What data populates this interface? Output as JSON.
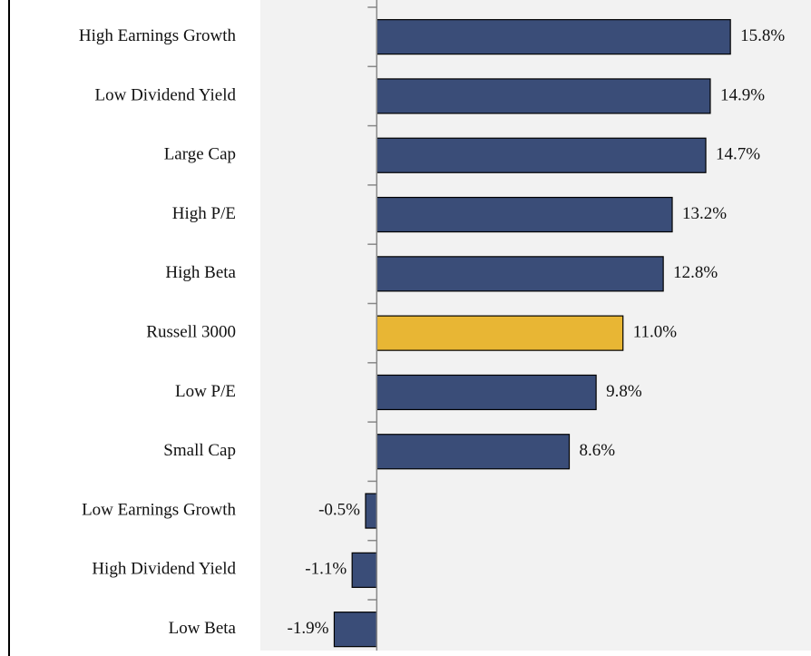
{
  "chart_data": {
    "type": "bar",
    "orientation": "horizontal",
    "categories": [
      "High Earnings Growth",
      "Low Dividend Yield",
      "Large Cap",
      "High P/E",
      "High Beta",
      "Russell 3000",
      "Low P/E",
      "Small Cap",
      "Low Earnings Growth",
      "High Dividend Yield",
      "Low  Beta"
    ],
    "values": [
      15.8,
      14.9,
      14.7,
      13.2,
      12.8,
      11.0,
      9.8,
      8.6,
      -0.5,
      -1.1,
      -1.9
    ],
    "value_labels": [
      "15.8%",
      "14.9%",
      "14.7%",
      "13.2%",
      "12.8%",
      "11.0%",
      "9.8%",
      "8.6%",
      "-0.5%",
      "-1.1%",
      "-1.9%"
    ],
    "colors": [
      "#3a4d78",
      "#3a4d78",
      "#3a4d78",
      "#3a4d78",
      "#3a4d78",
      "#e8b634",
      "#3a4d78",
      "#3a4d78",
      "#3a4d78",
      "#3a4d78",
      "#3a4d78"
    ],
    "xlim": [
      -5.2,
      19.4
    ]
  }
}
